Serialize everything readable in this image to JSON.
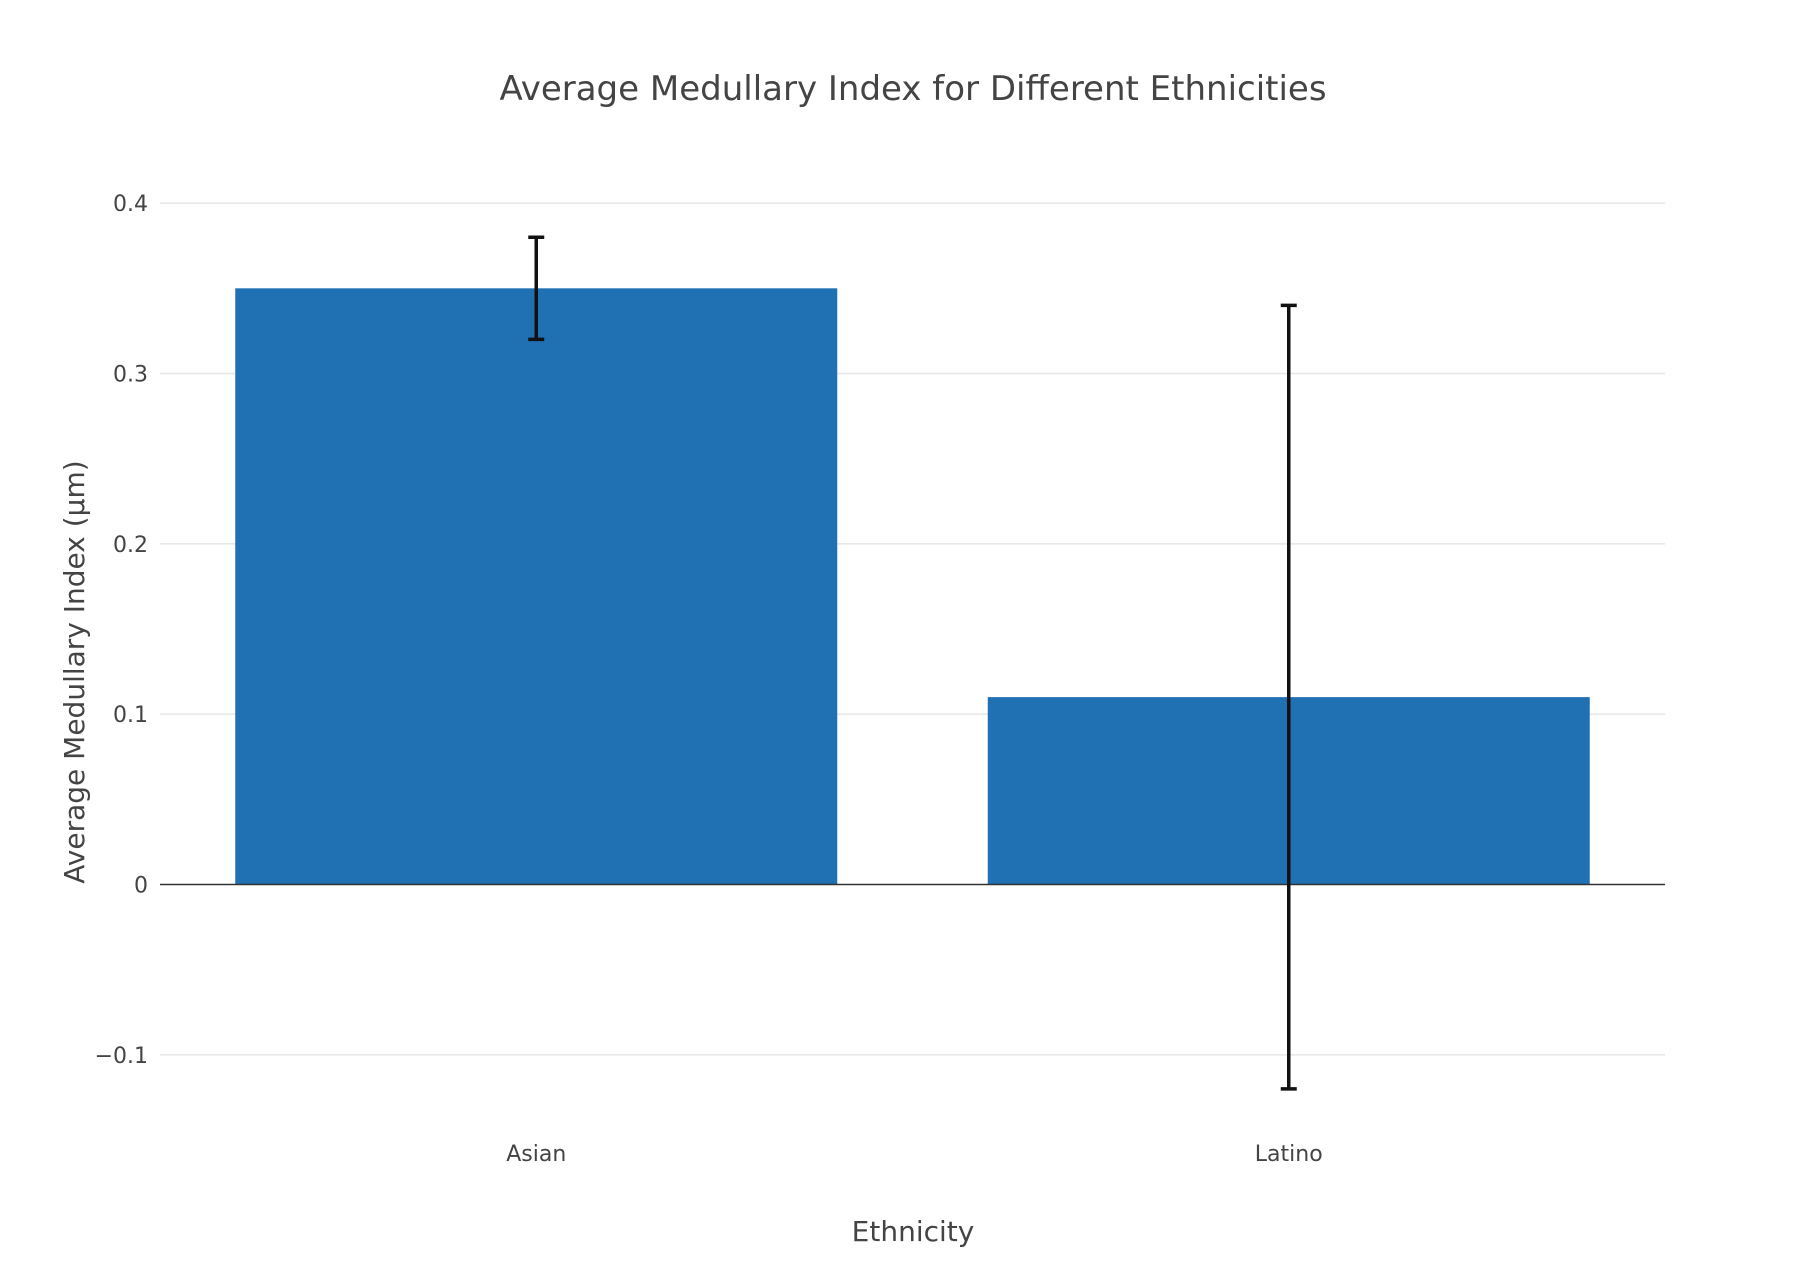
{
  "chart_data": {
    "type": "bar",
    "title": "Average Medullary Index for Different Ethnicities",
    "xlabel": "Ethnicity",
    "ylabel": "Average Medullary Index (µm)",
    "categories": [
      "Asian",
      "Latino"
    ],
    "values": [
      0.35,
      0.11
    ],
    "error_bars": [
      {
        "low": 0.32,
        "high": 0.38
      },
      {
        "low": -0.12,
        "high": 0.34
      }
    ],
    "ylim": [
      -0.15,
      0.44
    ],
    "yticks": [
      -0.1,
      0,
      0.1,
      0.2,
      0.3,
      0.4
    ],
    "ytick_labels": [
      "−0.1",
      "0",
      "0.1",
      "0.2",
      "0.3",
      "0.4"
    ],
    "grid": true,
    "legend": "none",
    "colors": {
      "bar": "#2070b4",
      "error_bar": "#111111",
      "grid": "#e6e6e6",
      "zero_line": "#333333",
      "text": "#444444"
    }
  }
}
